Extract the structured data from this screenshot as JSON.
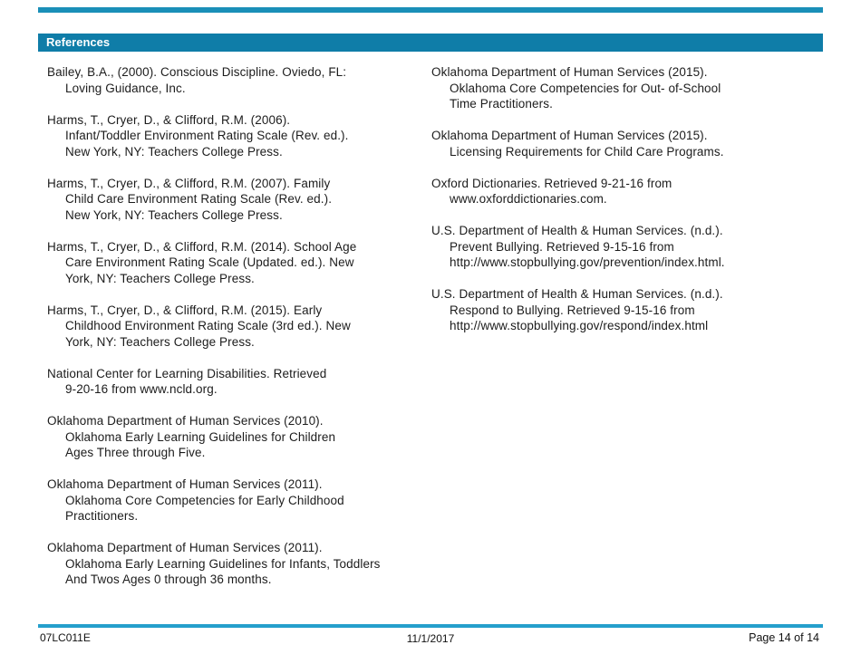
{
  "header": {
    "title": "References"
  },
  "references": {
    "left": [
      [
        "Bailey, B.A., (2000). Conscious Discipline.  Oviedo, FL:",
        "Loving Guidance, Inc."
      ],
      [
        "Harms, T., Cryer, D., & Clifford, R.M. (2006).",
        "Infant/Toddler Environment Rating Scale (Rev. ed.).",
        "New York, NY: Teachers College Press."
      ],
      [
        "Harms, T., Cryer, D., & Clifford, R.M. (2007). Family",
        "Child  Care Environment Rating Scale (Rev. ed.).",
        "New York, NY: Teachers College Press."
      ],
      [
        "Harms, T., Cryer, D., & Clifford, R.M. (2014). School Age",
        "Care Environment Rating Scale (Updated. ed.). New",
        "York, NY: Teachers College Press."
      ],
      [
        "Harms, T., Cryer, D., & Clifford, R.M. (2015). Early",
        "Childhood Environment Rating Scale (3rd ed.). New",
        "York, NY: Teachers College Press."
      ],
      [
        "National Center for Learning Disabilities.  Retrieved",
        "9-20-16 from www.ncld.org."
      ],
      [
        "Oklahoma Department of Human Services (2010).",
        "Oklahoma Early Learning Guidelines for Children",
        "Ages Three through Five."
      ],
      [
        "Oklahoma Department of Human Services (2011).",
        "Oklahoma Core Competencies for Early Childhood",
        "Practitioners."
      ],
      [
        "Oklahoma Department of Human Services (2011).",
        "Oklahoma Early Learning Guidelines for Infants, Toddlers",
        "And Twos Ages 0 through 36 months."
      ]
    ],
    "right": [
      [
        "Oklahoma Department of Human Services (2015).",
        "Oklahoma Core Competencies for Out- of-School",
        "Time Practitioners."
      ],
      [
        "Oklahoma Department of Human Services (2015).",
        "Licensing Requirements for Child Care Programs."
      ],
      [
        "Oxford Dictionaries. Retrieved 9-21-16 from",
        "www.oxforddictionaries.com."
      ],
      [
        "U.S. Department of Health & Human Services. (n.d.).",
        "Prevent Bullying. Retrieved 9-15-16 from",
        "http://www.stopbullying.gov/prevention/index.html."
      ],
      [
        "U.S. Department of Health & Human Services. (n.d.).",
        "Respond to Bullying. Retrieved 9-15-16 from",
        "http://www.stopbullying.gov/respond/index.html"
      ]
    ]
  },
  "footer": {
    "doc_id": "07LC011E",
    "date": "11/1/2017",
    "page_label": "Page 14 of 14"
  },
  "colors": {
    "header_bar": "#0F7DA8",
    "top_strip": "#1A8FB8",
    "bottom_strip": "#259FCC",
    "text": "#1C1C1C"
  }
}
